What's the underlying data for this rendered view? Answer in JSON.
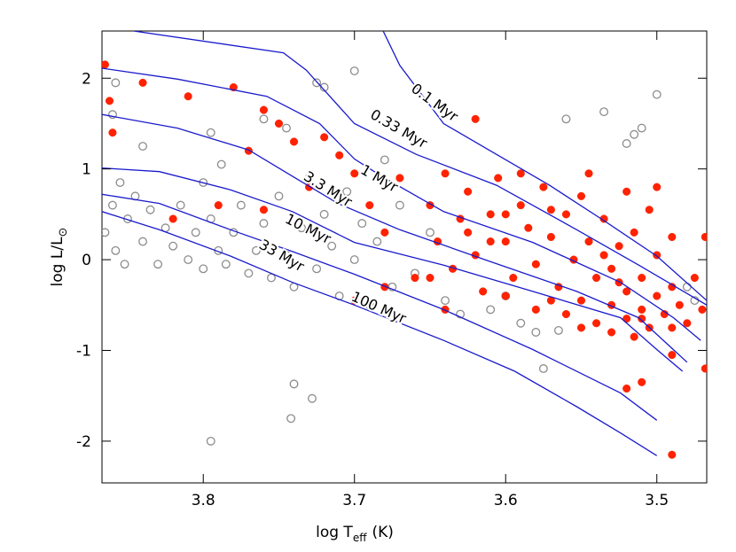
{
  "chart_data": {
    "type": "scatter",
    "x_label": "log T",
    "x_label_sub": "eff",
    "x_label_unit": "(K)",
    "y_label": "log L/L",
    "y_label_sub": "⊙",
    "xlim": [
      3.867,
      3.467
    ],
    "ylim": [
      -2.46,
      2.52
    ],
    "xticks": [
      3.8,
      3.7,
      3.6,
      3.5
    ],
    "yticks": [
      -2,
      -1,
      0,
      1,
      2
    ],
    "series": [
      {
        "color": "#8c8c8c",
        "marker": "open",
        "x": [
          3.865,
          3.86,
          3.858,
          3.855,
          3.852,
          3.85,
          3.845,
          3.84,
          3.835,
          3.83,
          3.825,
          3.82,
          3.815,
          3.81,
          3.805,
          3.8,
          3.8,
          3.795,
          3.79,
          3.788,
          3.785,
          3.78,
          3.775,
          3.77,
          3.765,
          3.76,
          3.755,
          3.75,
          3.745,
          3.74,
          3.735,
          3.73,
          3.725,
          3.72,
          3.715,
          3.71,
          3.705,
          3.7,
          3.695,
          3.69,
          3.685,
          3.68,
          3.675,
          3.67,
          3.66,
          3.65,
          3.64,
          3.63,
          3.61,
          3.6,
          3.59,
          3.58,
          3.565,
          3.86,
          3.858,
          3.84,
          3.795,
          3.76,
          3.745,
          3.72,
          3.725,
          3.7,
          3.795,
          3.74,
          3.742,
          3.728,
          3.575,
          3.56,
          3.535,
          3.5,
          3.51,
          3.515,
          3.52,
          3.48,
          3.475
        ],
        "y": [
          0.3,
          0.6,
          0.1,
          0.85,
          -0.05,
          0.45,
          0.7,
          0.2,
          0.55,
          -0.05,
          0.35,
          0.15,
          0.6,
          0.0,
          0.3,
          -0.1,
          0.85,
          0.45,
          0.1,
          1.05,
          -0.05,
          0.3,
          0.6,
          -0.15,
          0.1,
          0.4,
          -0.2,
          0.7,
          0.05,
          -0.3,
          0.35,
          0.9,
          -0.1,
          0.5,
          0.15,
          -0.4,
          0.75,
          0.0,
          0.4,
          -0.5,
          0.2,
          1.1,
          -0.3,
          0.6,
          -0.15,
          0.3,
          -0.45,
          -0.6,
          -0.55,
          -0.4,
          -0.7,
          -0.8,
          -0.78,
          1.6,
          1.95,
          1.25,
          1.4,
          1.55,
          1.45,
          1.9,
          1.95,
          2.08,
          -2.0,
          -1.37,
          -1.75,
          -1.53,
          -1.2,
          1.55,
          1.63,
          1.82,
          1.45,
          1.38,
          1.28,
          -0.3,
          -0.45
        ]
      },
      {
        "color": "#ff2200",
        "marker": "filled",
        "x": [
          3.865,
          3.862,
          3.86,
          3.84,
          3.81,
          3.78,
          3.76,
          3.75,
          3.74,
          3.72,
          3.71,
          3.77,
          3.79,
          3.82,
          3.76,
          3.73,
          3.7,
          3.69,
          3.68,
          3.67,
          3.66,
          3.68,
          3.7,
          3.62,
          3.65,
          3.645,
          3.64,
          3.635,
          3.63,
          3.625,
          3.62,
          3.615,
          3.61,
          3.605,
          3.6,
          3.595,
          3.59,
          3.585,
          3.58,
          3.575,
          3.57,
          3.565,
          3.56,
          3.555,
          3.55,
          3.55,
          3.545,
          3.54,
          3.535,
          3.53,
          3.53,
          3.525,
          3.52,
          3.52,
          3.515,
          3.51,
          3.51,
          3.505,
          3.5,
          3.5,
          3.495,
          3.49,
          3.49,
          3.485,
          3.48,
          3.475,
          3.47,
          3.54,
          3.56,
          3.55,
          3.53,
          3.515,
          3.57,
          3.58,
          3.6,
          3.59,
          3.545,
          3.52,
          3.505,
          3.49,
          3.5,
          3.65,
          3.64,
          3.625,
          3.61,
          3.6,
          3.57,
          3.535,
          3.525,
          3.51,
          3.51,
          3.52,
          3.49,
          3.468,
          3.468,
          3.49
        ],
        "y": [
          2.15,
          1.75,
          1.4,
          1.95,
          1.8,
          1.9,
          1.65,
          1.5,
          1.3,
          1.35,
          1.15,
          1.2,
          0.6,
          0.45,
          0.55,
          0.8,
          0.95,
          0.6,
          0.3,
          0.9,
          -0.2,
          -0.3,
          -0.45,
          1.55,
          0.6,
          0.2,
          0.95,
          -0.1,
          0.45,
          0.75,
          0.05,
          -0.35,
          0.5,
          0.9,
          0.2,
          -0.2,
          0.6,
          0.35,
          -0.05,
          0.8,
          0.25,
          -0.3,
          0.5,
          0.0,
          -0.45,
          0.7,
          0.2,
          -0.2,
          0.45,
          -0.5,
          -0.1,
          0.15,
          -0.35,
          -0.65,
          0.3,
          -0.2,
          -0.55,
          -0.75,
          -0.4,
          0.05,
          -0.6,
          -0.3,
          -0.75,
          -0.5,
          -0.7,
          -0.2,
          -0.55,
          -0.7,
          -0.6,
          -0.75,
          -0.8,
          -0.85,
          -0.45,
          -0.55,
          -0.4,
          0.95,
          0.95,
          0.75,
          0.55,
          0.25,
          0.8,
          -0.2,
          -0.55,
          0.3,
          0.2,
          0.5,
          0.55,
          0.05,
          -0.25,
          -0.65,
          -1.35,
          -1.42,
          -2.15,
          -1.2,
          0.25,
          -1.05
        ]
      }
    ],
    "lines": [
      {
        "label": "0.1 Myr",
        "color": "#1a1acc",
        "x": [
          3.681,
          3.67,
          3.641,
          3.606,
          3.571,
          3.535,
          3.5,
          3.467
        ],
        "y": [
          2.52,
          2.14,
          1.5,
          1.16,
          0.82,
          0.43,
          0.04,
          -0.45
        ]
      },
      {
        "label": "0.33 Myr",
        "color": "#1a1acc",
        "x": [
          3.846,
          3.747,
          3.732,
          3.7,
          3.659,
          3.606,
          3.553,
          3.512,
          3.467
        ],
        "y": [
          2.52,
          2.28,
          2.09,
          1.5,
          1.16,
          0.82,
          0.33,
          -0.06,
          -0.5
        ]
      },
      {
        "label": "1 Myr",
        "color": "#1a1acc",
        "x": [
          3.867,
          3.817,
          3.758,
          3.723,
          3.7,
          3.682,
          3.641,
          3.582,
          3.524,
          3.489,
          3.471
        ],
        "y": [
          2.11,
          1.99,
          1.8,
          1.5,
          1.11,
          0.92,
          0.53,
          0.19,
          -0.25,
          -0.64,
          -0.89
        ]
      },
      {
        "label": "3.3 Myr",
        "color": "#1a1acc",
        "x": [
          3.867,
          3.817,
          3.77,
          3.741,
          3.711,
          3.67,
          3.612,
          3.553,
          3.512,
          3.48
        ],
        "y": [
          1.6,
          1.45,
          1.21,
          0.92,
          0.62,
          0.33,
          -0.01,
          -0.35,
          -0.64,
          -1.13
        ]
      },
      {
        "label": "10 Myr",
        "color": "#1a1acc",
        "x": [
          3.867,
          3.829,
          3.782,
          3.741,
          3.7,
          3.641,
          3.582,
          3.524,
          3.5,
          3.483
        ],
        "y": [
          1.01,
          0.97,
          0.77,
          0.53,
          0.19,
          -0.06,
          -0.35,
          -0.64,
          -0.99,
          -1.23
        ]
      },
      {
        "label": "33 Myr",
        "color": "#1a1acc",
        "x": [
          3.867,
          3.829,
          3.782,
          3.741,
          3.7,
          3.641,
          3.582,
          3.524,
          3.5
        ],
        "y": [
          0.72,
          0.62,
          0.33,
          0.09,
          -0.16,
          -0.55,
          -0.99,
          -1.47,
          -1.77
        ]
      },
      {
        "label": "100 Myr",
        "color": "#1a1acc",
        "x": [
          3.867,
          3.829,
          3.782,
          3.741,
          3.7,
          3.641,
          3.594,
          3.553,
          3.524,
          3.5
        ],
        "y": [
          0.53,
          0.33,
          0.04,
          -0.25,
          -0.5,
          -0.89,
          -1.23,
          -1.62,
          -1.91,
          -2.16
        ]
      }
    ]
  }
}
